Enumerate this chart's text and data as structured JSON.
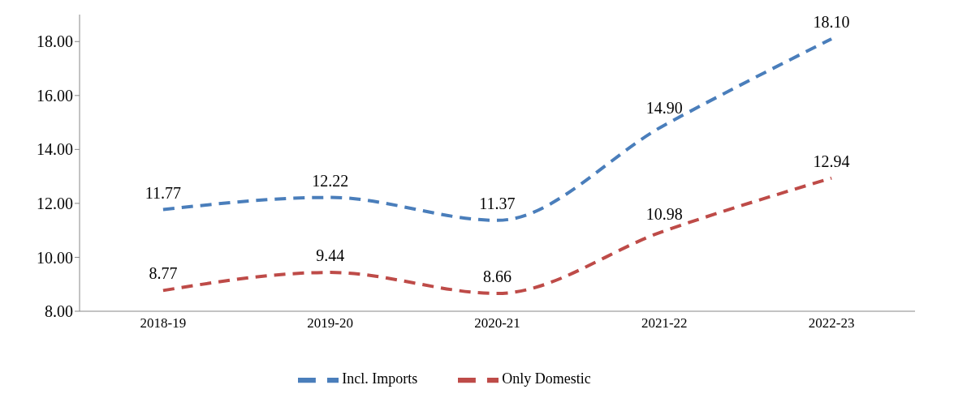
{
  "chart_data": {
    "type": "line",
    "categories": [
      "2018-19",
      "2019-20",
      "2020-21",
      "2021-22",
      "2022-23"
    ],
    "series": [
      {
        "name": "Incl. Imports",
        "color": "#4a7ebb",
        "values": [
          11.77,
          12.22,
          11.37,
          14.9,
          18.1
        ],
        "value_labels": [
          "11.77",
          "12.22",
          "11.37",
          "14.90",
          "18.10"
        ]
      },
      {
        "name": "Only Domestic",
        "color": "#be4b48",
        "values": [
          8.77,
          9.44,
          8.66,
          10.98,
          12.94
        ],
        "value_labels": [
          "8.77",
          "9.44",
          "8.66",
          "10.98",
          "12.94"
        ]
      }
    ],
    "ylim": [
      8,
      19
    ],
    "yticks": [
      {
        "value": 8,
        "label": "8.00"
      },
      {
        "value": 10,
        "label": "10.00"
      },
      {
        "value": 12,
        "label": "12.00"
      },
      {
        "value": 14,
        "label": "14.00"
      },
      {
        "value": 16,
        "label": "16.00"
      },
      {
        "value": 18,
        "label": "18.00"
      }
    ],
    "grid": false,
    "legend": "bottom",
    "line_style": "dashed",
    "marker": "none"
  }
}
